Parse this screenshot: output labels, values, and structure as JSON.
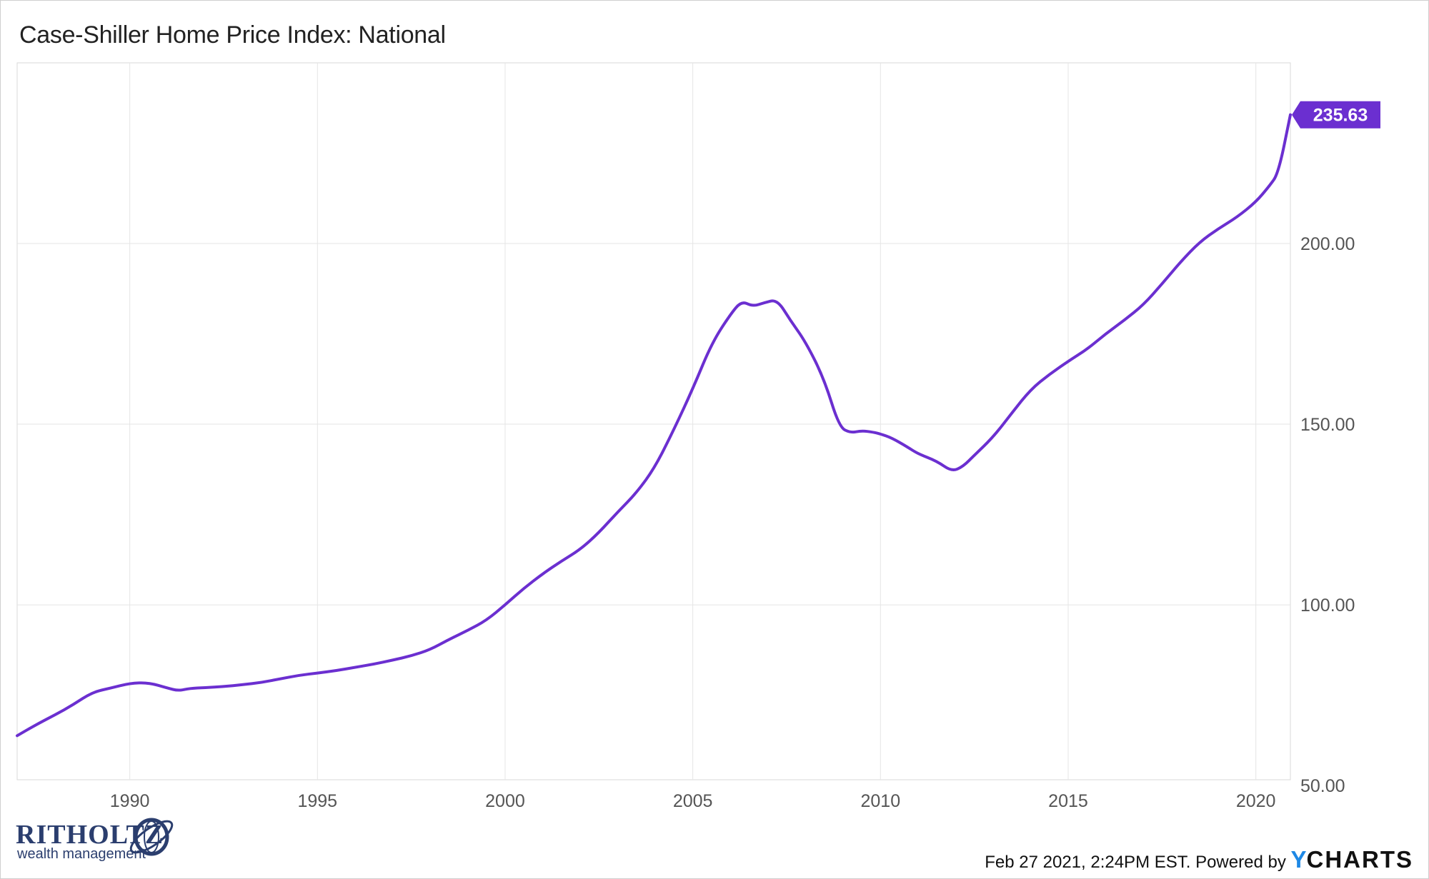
{
  "chart_data": {
    "type": "line",
    "title": "Case-Shiller Home Price Index: National",
    "xlim": [
      1987.0,
      2020.92
    ],
    "ylim": [
      51.6,
      250.0
    ],
    "x_ticks": [
      1990,
      1995,
      2000,
      2005,
      2010,
      2015,
      2020
    ],
    "y_ticks": [
      50,
      100,
      150,
      200
    ],
    "y_tick_labels": [
      "50.00",
      "100.00",
      "150.00",
      "200.00"
    ],
    "grid": true,
    "legend": "none",
    "last_value_label": "235.63",
    "series": [
      {
        "color": "#6b2fd0",
        "points": [
          [
            1987.0,
            63.8
          ],
          [
            1987.5,
            66.8
          ],
          [
            1988.0,
            69.5
          ],
          [
            1988.5,
            72.4
          ],
          [
            1989.0,
            75.8
          ],
          [
            1989.5,
            77.0
          ],
          [
            1990.0,
            78.3
          ],
          [
            1990.5,
            78.5
          ],
          [
            1991.0,
            77.0
          ],
          [
            1991.3,
            76.2
          ],
          [
            1991.6,
            76.9
          ],
          [
            1992.0,
            77.1
          ],
          [
            1992.5,
            77.4
          ],
          [
            1993.0,
            77.9
          ],
          [
            1993.5,
            78.5
          ],
          [
            1994.0,
            79.5
          ],
          [
            1994.5,
            80.5
          ],
          [
            1995.0,
            81.1
          ],
          [
            1995.5,
            81.8
          ],
          [
            1996.0,
            82.7
          ],
          [
            1996.5,
            83.6
          ],
          [
            1997.0,
            84.7
          ],
          [
            1997.5,
            85.9
          ],
          [
            1998.0,
            87.6
          ],
          [
            1998.5,
            90.4
          ],
          [
            1999.0,
            92.9
          ],
          [
            1999.5,
            95.7
          ],
          [
            2000.0,
            100.0
          ],
          [
            2000.5,
            104.6
          ],
          [
            2001.0,
            108.6
          ],
          [
            2001.5,
            112.1
          ],
          [
            2002.0,
            115.3
          ],
          [
            2002.5,
            120.0
          ],
          [
            2003.0,
            125.7
          ],
          [
            2003.5,
            131.0
          ],
          [
            2004.0,
            138.2
          ],
          [
            2004.5,
            148.6
          ],
          [
            2005.0,
            159.8
          ],
          [
            2005.5,
            172.3
          ],
          [
            2006.0,
            180.4
          ],
          [
            2006.3,
            184.1
          ],
          [
            2006.6,
            182.6
          ],
          [
            2006.9,
            183.6
          ],
          [
            2007.25,
            184.5
          ],
          [
            2007.6,
            178.7
          ],
          [
            2008.0,
            172.9
          ],
          [
            2008.5,
            162.5
          ],
          [
            2008.9,
            149.2
          ],
          [
            2009.2,
            147.6
          ],
          [
            2009.5,
            148.2
          ],
          [
            2009.8,
            147.8
          ],
          [
            2010.0,
            147.3
          ],
          [
            2010.3,
            146.2
          ],
          [
            2010.7,
            143.8
          ],
          [
            2011.0,
            141.8
          ],
          [
            2011.5,
            139.8
          ],
          [
            2011.9,
            136.9
          ],
          [
            2012.2,
            138.3
          ],
          [
            2012.5,
            141.4
          ],
          [
            2013.0,
            146.4
          ],
          [
            2013.5,
            153.1
          ],
          [
            2014.0,
            159.6
          ],
          [
            2014.5,
            163.8
          ],
          [
            2015.0,
            167.4
          ],
          [
            2015.5,
            170.7
          ],
          [
            2016.0,
            175.0
          ],
          [
            2016.5,
            178.8
          ],
          [
            2017.0,
            183.0
          ],
          [
            2017.5,
            188.8
          ],
          [
            2018.0,
            195.0
          ],
          [
            2018.5,
            200.4
          ],
          [
            2019.0,
            204.1
          ],
          [
            2019.5,
            207.3
          ],
          [
            2020.0,
            211.5
          ],
          [
            2020.35,
            215.8
          ],
          [
            2020.6,
            219.4
          ],
          [
            2020.92,
            235.63
          ]
        ]
      }
    ]
  },
  "footer": {
    "timestamp": "Feb 27 2021, 2:24PM EST. Powered by ",
    "brand_y": "Y",
    "brand_rest": "CHARTS"
  },
  "logo": {
    "name": "RITHOLTZ",
    "subtitle": "wealth management"
  }
}
